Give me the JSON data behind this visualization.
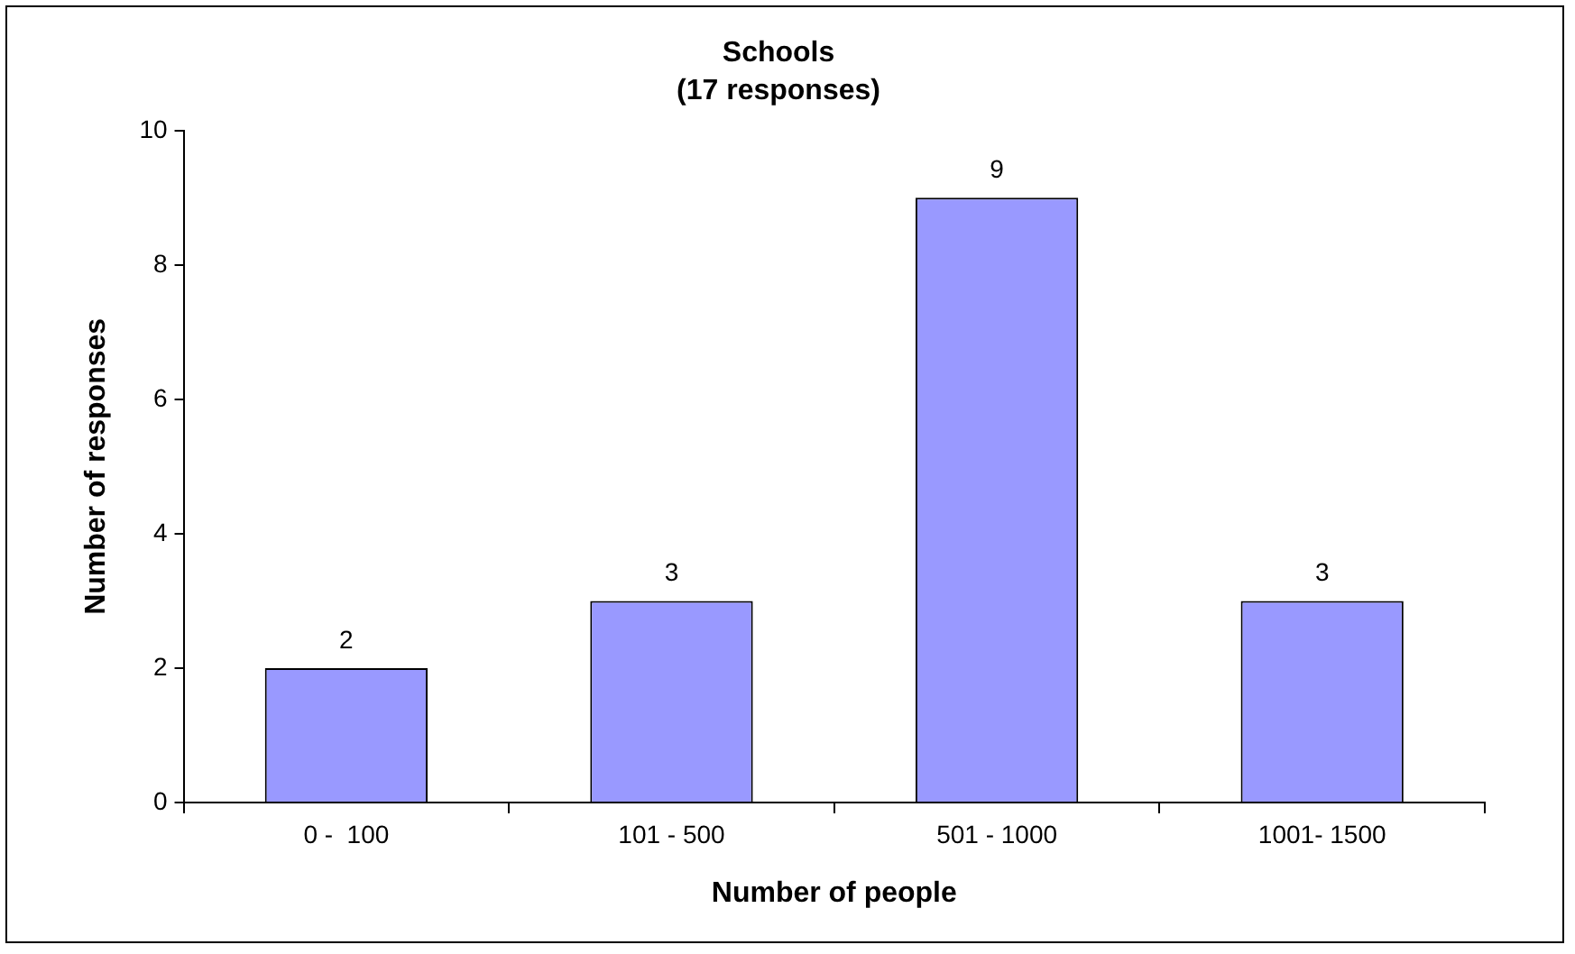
{
  "chart_data": {
    "type": "bar",
    "title": "Schools",
    "subtitle": "(17 responses)",
    "xlabel": "Number of people",
    "ylabel": "Number of responses",
    "categories": [
      "0 -  100",
      "101 - 500",
      "501 - 1000",
      "1001- 1500"
    ],
    "values": [
      2,
      3,
      9,
      3
    ],
    "color": "#9999ff",
    "ylim": [
      0,
      10
    ],
    "yticks": [
      0,
      2,
      4,
      6,
      8,
      10
    ],
    "grid": false,
    "legend": false,
    "data_labels": true
  }
}
